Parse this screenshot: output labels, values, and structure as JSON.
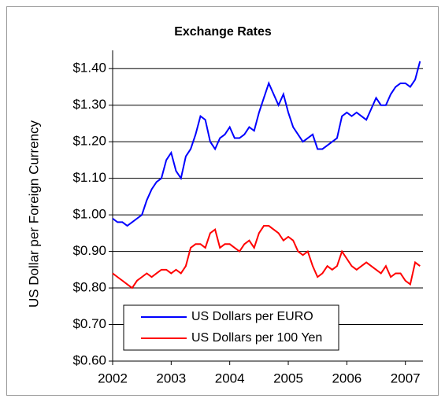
{
  "chart_data": {
    "type": "line",
    "title": "Exchange Rates",
    "y_label": "US Dollar per Foreign Currency",
    "xlim": [
      2002,
      2007.3
    ],
    "xticks": [
      2002,
      2003,
      2004,
      2005,
      2006,
      2007
    ],
    "ylim": [
      0.6,
      1.45
    ],
    "yticks": [
      {
        "value": 0.6,
        "label": "$0.60"
      },
      {
        "value": 0.7,
        "label": "$0.70"
      },
      {
        "value": 0.8,
        "label": "$0.80"
      },
      {
        "value": 0.9,
        "label": "$0.90"
      },
      {
        "value": 1.0,
        "label": "$1.00"
      },
      {
        "value": 1.1,
        "label": "$1.10"
      },
      {
        "value": 1.2,
        "label": "$1.20"
      },
      {
        "value": 1.3,
        "label": "$1.30"
      },
      {
        "value": 1.4,
        "label": "$1.40"
      }
    ],
    "grid": true,
    "legend": "lower left",
    "x": [
      2002,
      2002.083,
      2002.167,
      2002.25,
      2002.333,
      2002.417,
      2002.5,
      2002.583,
      2002.667,
      2002.75,
      2002.833,
      2002.917,
      2003,
      2003.083,
      2003.167,
      2003.25,
      2003.333,
      2003.417,
      2003.5,
      2003.583,
      2003.667,
      2003.75,
      2003.833,
      2003.917,
      2004,
      2004.083,
      2004.167,
      2004.25,
      2004.333,
      2004.417,
      2004.5,
      2004.583,
      2004.667,
      2004.75,
      2004.833,
      2004.917,
      2005,
      2005.083,
      2005.167,
      2005.25,
      2005.333,
      2005.417,
      2005.5,
      2005.583,
      2005.667,
      2005.75,
      2005.833,
      2005.917,
      2006,
      2006.083,
      2006.167,
      2006.25,
      2006.333,
      2006.417,
      2006.5,
      2006.583,
      2006.667,
      2006.75,
      2006.833,
      2006.917,
      2007,
      2007.083,
      2007.167,
      2007.25
    ],
    "series": [
      {
        "name": "US Dollars per EURO",
        "color": "#0000ff",
        "values": [
          0.99,
          0.98,
          0.98,
          0.97,
          0.98,
          0.99,
          1.0,
          1.04,
          1.07,
          1.09,
          1.1,
          1.15,
          1.17,
          1.12,
          1.1,
          1.16,
          1.18,
          1.22,
          1.27,
          1.26,
          1.2,
          1.18,
          1.21,
          1.22,
          1.24,
          1.21,
          1.21,
          1.22,
          1.24,
          1.23,
          1.28,
          1.32,
          1.36,
          1.33,
          1.3,
          1.33,
          1.28,
          1.24,
          1.22,
          1.2,
          1.21,
          1.22,
          1.18,
          1.18,
          1.19,
          1.2,
          1.21,
          1.27,
          1.28,
          1.27,
          1.28,
          1.27,
          1.26,
          1.29,
          1.32,
          1.3,
          1.3,
          1.33,
          1.35,
          1.36,
          1.36,
          1.35,
          1.37,
          1.42
        ]
      },
      {
        "name": "US Dollars per 100 Yen",
        "color": "#ff0000",
        "values": [
          0.84,
          0.83,
          0.82,
          0.81,
          0.8,
          0.82,
          0.83,
          0.84,
          0.83,
          0.84,
          0.85,
          0.85,
          0.84,
          0.85,
          0.84,
          0.86,
          0.91,
          0.92,
          0.92,
          0.91,
          0.95,
          0.96,
          0.91,
          0.92,
          0.92,
          0.91,
          0.9,
          0.92,
          0.93,
          0.91,
          0.95,
          0.97,
          0.97,
          0.96,
          0.95,
          0.93,
          0.94,
          0.93,
          0.9,
          0.89,
          0.9,
          0.86,
          0.83,
          0.84,
          0.86,
          0.85,
          0.86,
          0.9,
          0.88,
          0.86,
          0.85,
          0.86,
          0.87,
          0.86,
          0.85,
          0.84,
          0.86,
          0.83,
          0.84,
          0.84,
          0.82,
          0.81,
          0.87,
          0.86
        ]
      }
    ]
  }
}
